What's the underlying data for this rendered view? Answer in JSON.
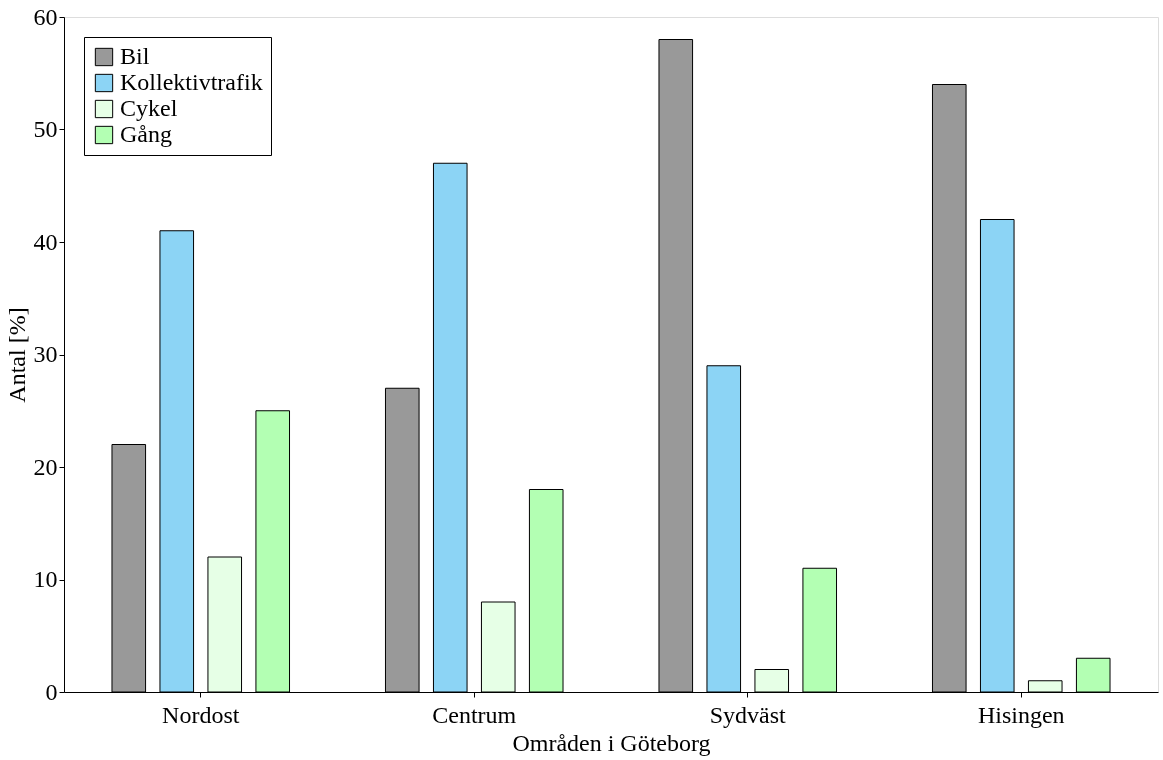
{
  "chart_data": {
    "type": "bar",
    "xlabel": "Områden i Göteborg",
    "ylabel": "Antal [%]",
    "categories": [
      "Nordost",
      "Centrum",
      "Sydväst",
      "Hisingen"
    ],
    "series": [
      {
        "name": "Bil",
        "color": "#999999",
        "values": [
          22,
          27,
          58,
          54
        ]
      },
      {
        "name": "Kollektivtrafik",
        "color": "#8cd4f5",
        "values": [
          41,
          47,
          29,
          42
        ]
      },
      {
        "name": "Cykel",
        "color": "#e6ffe6",
        "values": [
          12,
          8,
          2,
          1
        ]
      },
      {
        "name": "Gång",
        "color": "#b3ffb3",
        "values": [
          25,
          18,
          11,
          3
        ]
      }
    ],
    "ylim": [
      0,
      60
    ],
    "yticks": [
      0,
      10,
      20,
      30,
      40,
      50,
      60
    ],
    "grid": false,
    "legend": "top left"
  }
}
